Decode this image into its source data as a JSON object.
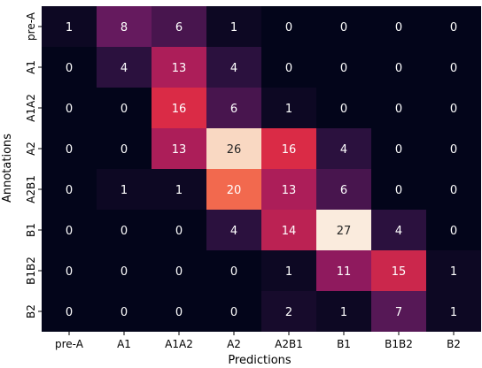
{
  "chart_data": {
    "type": "heatmap",
    "title": "",
    "xlabel": "Predictions",
    "ylabel": "Annotations",
    "x_categories": [
      "pre-A",
      "A1",
      "A1A2",
      "A2",
      "A2B1",
      "B1",
      "B1B2",
      "B2"
    ],
    "y_categories": [
      "pre-A",
      "A1",
      "A1A2",
      "A2",
      "A2B1",
      "B1",
      "B1B2",
      "B2"
    ],
    "values": [
      [
        1,
        8,
        6,
        1,
        0,
        0,
        0,
        0
      ],
      [
        0,
        4,
        13,
        4,
        0,
        0,
        0,
        0
      ],
      [
        0,
        0,
        16,
        6,
        1,
        0,
        0,
        0
      ],
      [
        0,
        0,
        13,
        26,
        16,
        4,
        0,
        0
      ],
      [
        0,
        1,
        1,
        20,
        13,
        6,
        0,
        0
      ],
      [
        0,
        0,
        0,
        4,
        14,
        27,
        4,
        0
      ],
      [
        0,
        0,
        0,
        0,
        1,
        11,
        15,
        1
      ],
      [
        0,
        0,
        0,
        0,
        2,
        1,
        7,
        1
      ]
    ],
    "colormap": "rocket",
    "grid": false,
    "colorbar": false
  }
}
